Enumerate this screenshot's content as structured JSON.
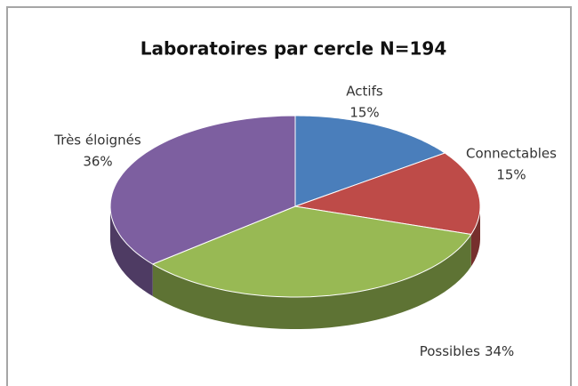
{
  "chart_data": {
    "type": "pie3d",
    "title": "Laboratoires par cercle N=194",
    "categories": [
      "Actifs",
      "Connectables",
      "Possibles",
      "Très éloignés"
    ],
    "values": [
      15,
      15,
      34,
      36
    ],
    "value_labels": [
      "15%",
      "15%",
      "34%",
      "36%"
    ],
    "colors": [
      "#4a7ebb",
      "#be4b48",
      "#98b954",
      "#7d5fa0"
    ]
  }
}
